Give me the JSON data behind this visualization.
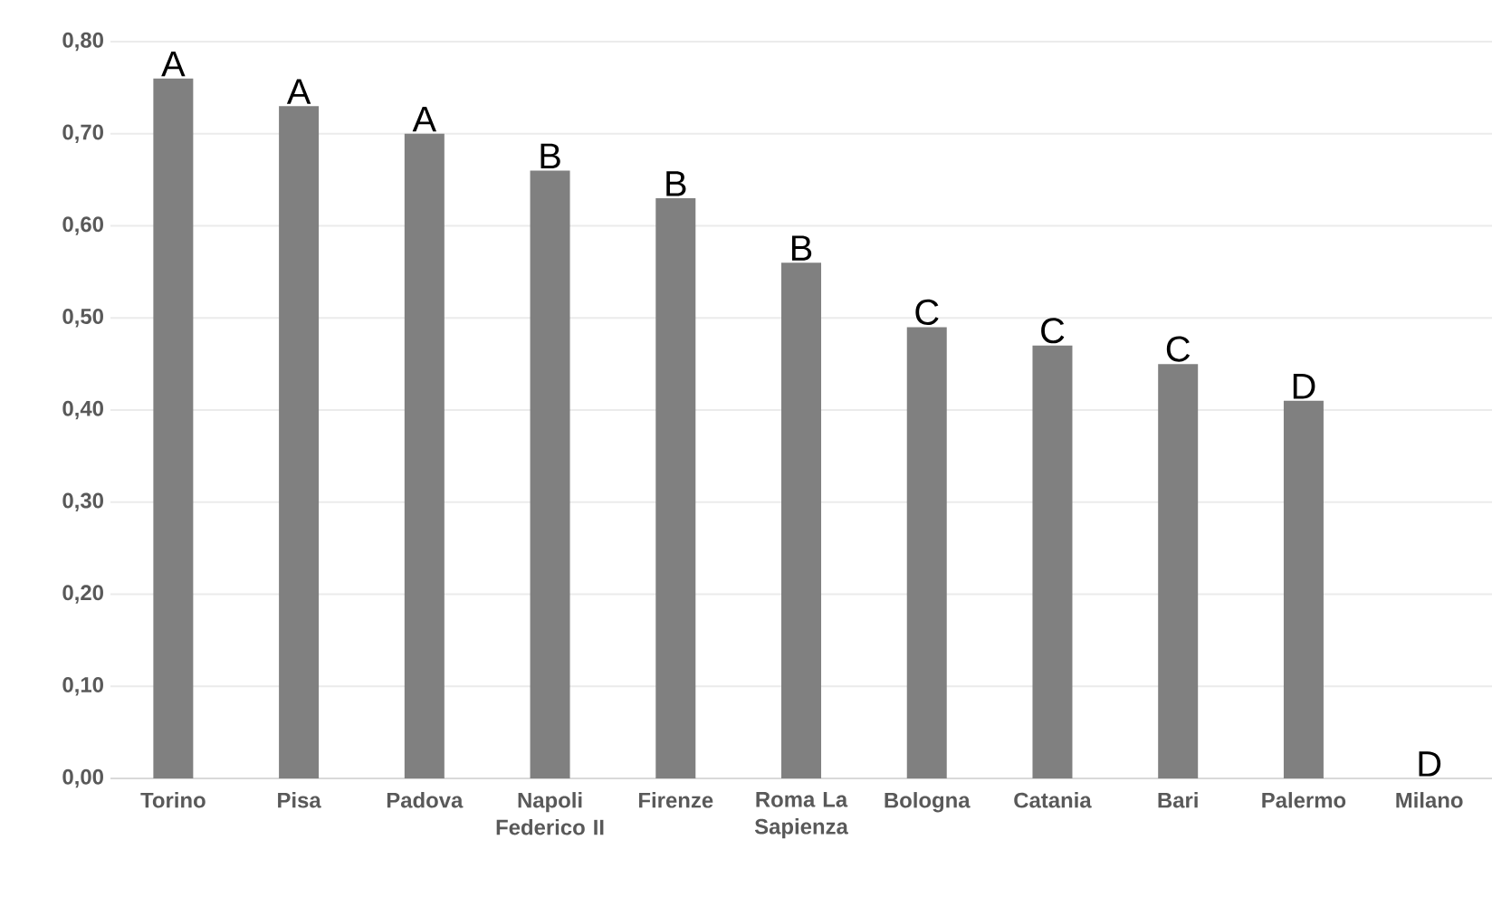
{
  "chart_data": {
    "type": "bar",
    "categories": [
      "Torino",
      "Pisa",
      "Padova",
      "Napoli Federico II",
      "Firenze",
      "Roma La Sapienza",
      "Bologna",
      "Catania",
      "Bari",
      "Palermo",
      "Milano"
    ],
    "values": [
      0.76,
      0.73,
      0.7,
      0.66,
      0.63,
      0.56,
      0.49,
      0.47,
      0.45,
      0.41,
      0
    ],
    "color": "#808080",
    "ylim": [
      0,
      0.8
    ],
    "yticks": [
      {
        "value": 0,
        "label": "0,00"
      },
      {
        "value": 0.1,
        "label": "0,10"
      },
      {
        "value": 0.2,
        "label": "0,20"
      },
      {
        "value": 0.3,
        "label": "0,30"
      },
      {
        "value": 0.4,
        "label": "0,40"
      },
      {
        "value": 0.5,
        "label": "0,50"
      },
      {
        "value": 0.6,
        "label": "0,60"
      },
      {
        "value": 0.7,
        "label": "0,70"
      },
      {
        "value": 0.8,
        "label": "0,80"
      }
    ],
    "grid": "y",
    "annotations": [
      {
        "text": "A",
        "x": "Torino",
        "y": 0.76
      },
      {
        "text": "A",
        "x": "Pisa",
        "y": 0.73
      },
      {
        "text": "A",
        "x": "Padova",
        "y": 0.7
      },
      {
        "text": "B",
        "x": "Napoli Federico II",
        "y": 0.66
      },
      {
        "text": "B",
        "x": "Firenze",
        "y": 0.63
      },
      {
        "text": "B",
        "x": "Roma La Sapienza",
        "y": 0.56
      },
      {
        "text": "C",
        "x": "Bologna",
        "y": 0.49
      },
      {
        "text": "C",
        "x": "Catania",
        "y": 0.47
      },
      {
        "text": "C",
        "x": "Bari",
        "y": 0.45
      },
      {
        "text": "D",
        "x": "Palermo",
        "y": 0.41
      },
      {
        "text": "D",
        "x": "Milano",
        "y": 0
      }
    ]
  }
}
